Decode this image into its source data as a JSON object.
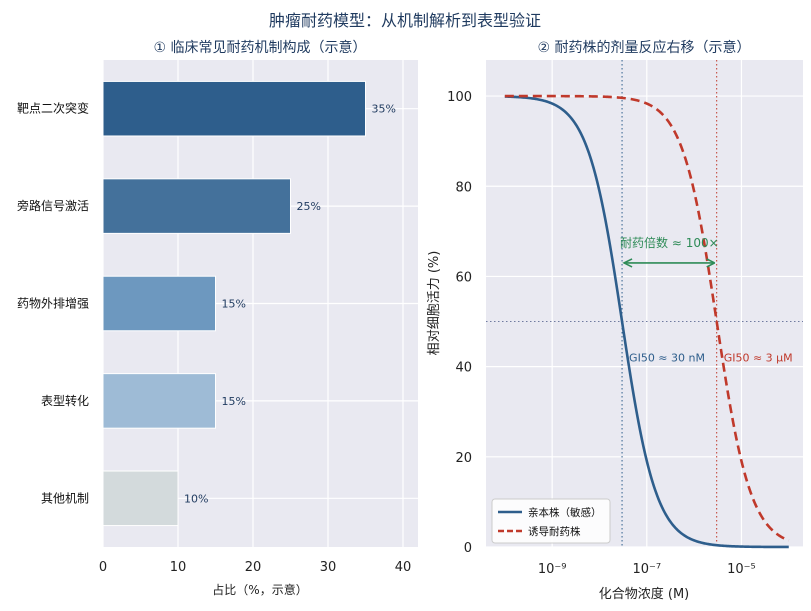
{
  "suptitle": "肿瘤耐药模型：从机制解析到表型验证",
  "chart_data": [
    {
      "type": "bar",
      "orientation": "horizontal",
      "title": "① 临床常见耐药机制构成（示意）",
      "xlabel": "占比（%，示意）",
      "ylabel": "",
      "xlim": [
        0,
        42
      ],
      "xticks": [
        "0",
        "10",
        "20",
        "30",
        "40"
      ],
      "grid": true,
      "categories": [
        "靶点二次突变",
        "旁路信号激活",
        "药物外排增强",
        "表型转化",
        "其他机制"
      ],
      "values": [
        35,
        25,
        15,
        15,
        10
      ],
      "data_labels": [
        "35%",
        "25%",
        "15%",
        "15%",
        "10%"
      ],
      "colors": [
        "#2e5e8c",
        "#44719b",
        "#6d98bf",
        "#9ebbd6",
        "#d3dadc"
      ]
    },
    {
      "type": "line",
      "title": "② 耐药株的剂量反应右移（示意）",
      "xlabel": "化合物浓度 (M)",
      "ylabel": "相对细胞活力 (%)",
      "xscale": "log",
      "xlim": [
        4e-11,
        0.0002
      ],
      "ylim": [
        0,
        108
      ],
      "xticks": [
        {
          "value": 1e-09,
          "label": "10⁻⁹"
        },
        {
          "value": 1e-07,
          "label": "10⁻⁷"
        },
        {
          "value": 1e-05,
          "label": "10⁻⁵"
        }
      ],
      "yticks": [
        "0",
        "20",
        "40",
        "60",
        "80",
        "100"
      ],
      "grid": true,
      "legend_position": "lower-left",
      "series": [
        {
          "name": "亲本株（敏感）",
          "style": "solid",
          "color": "#2e5e8c",
          "ic50": 3e-08,
          "hill": 1.2
        },
        {
          "name": "诱导耐药株",
          "style": "dashed",
          "color": "#c0392b",
          "ic50": 3e-06,
          "hill": 1.2
        }
      ],
      "x_range": [
        1e-10,
        0.0001
      ],
      "reference_lines": [
        {
          "axis": "y",
          "value": 50,
          "color": "#6f7aa0"
        },
        {
          "axis": "x",
          "value": 3e-08,
          "color": "#2e5e8c"
        },
        {
          "axis": "x",
          "value": 3e-06,
          "color": "#c0392b"
        }
      ],
      "annotations": [
        {
          "text": "GI50 ≈ 30 nM",
          "color": "#2e5e8c"
        },
        {
          "text": "GI50 ≈ 3 μM",
          "color": "#c0392b"
        },
        {
          "text": "耐药倍数 ≈ 100×",
          "color": "#2e8b57"
        }
      ],
      "arrow": {
        "from": 3e-08,
        "to": 3e-06,
        "y": 63,
        "color": "#2e8b57"
      }
    }
  ],
  "colors": {
    "axes_bg": "#e9e9f1",
    "grid": "#ffffff",
    "title": "#1f3a5f"
  }
}
